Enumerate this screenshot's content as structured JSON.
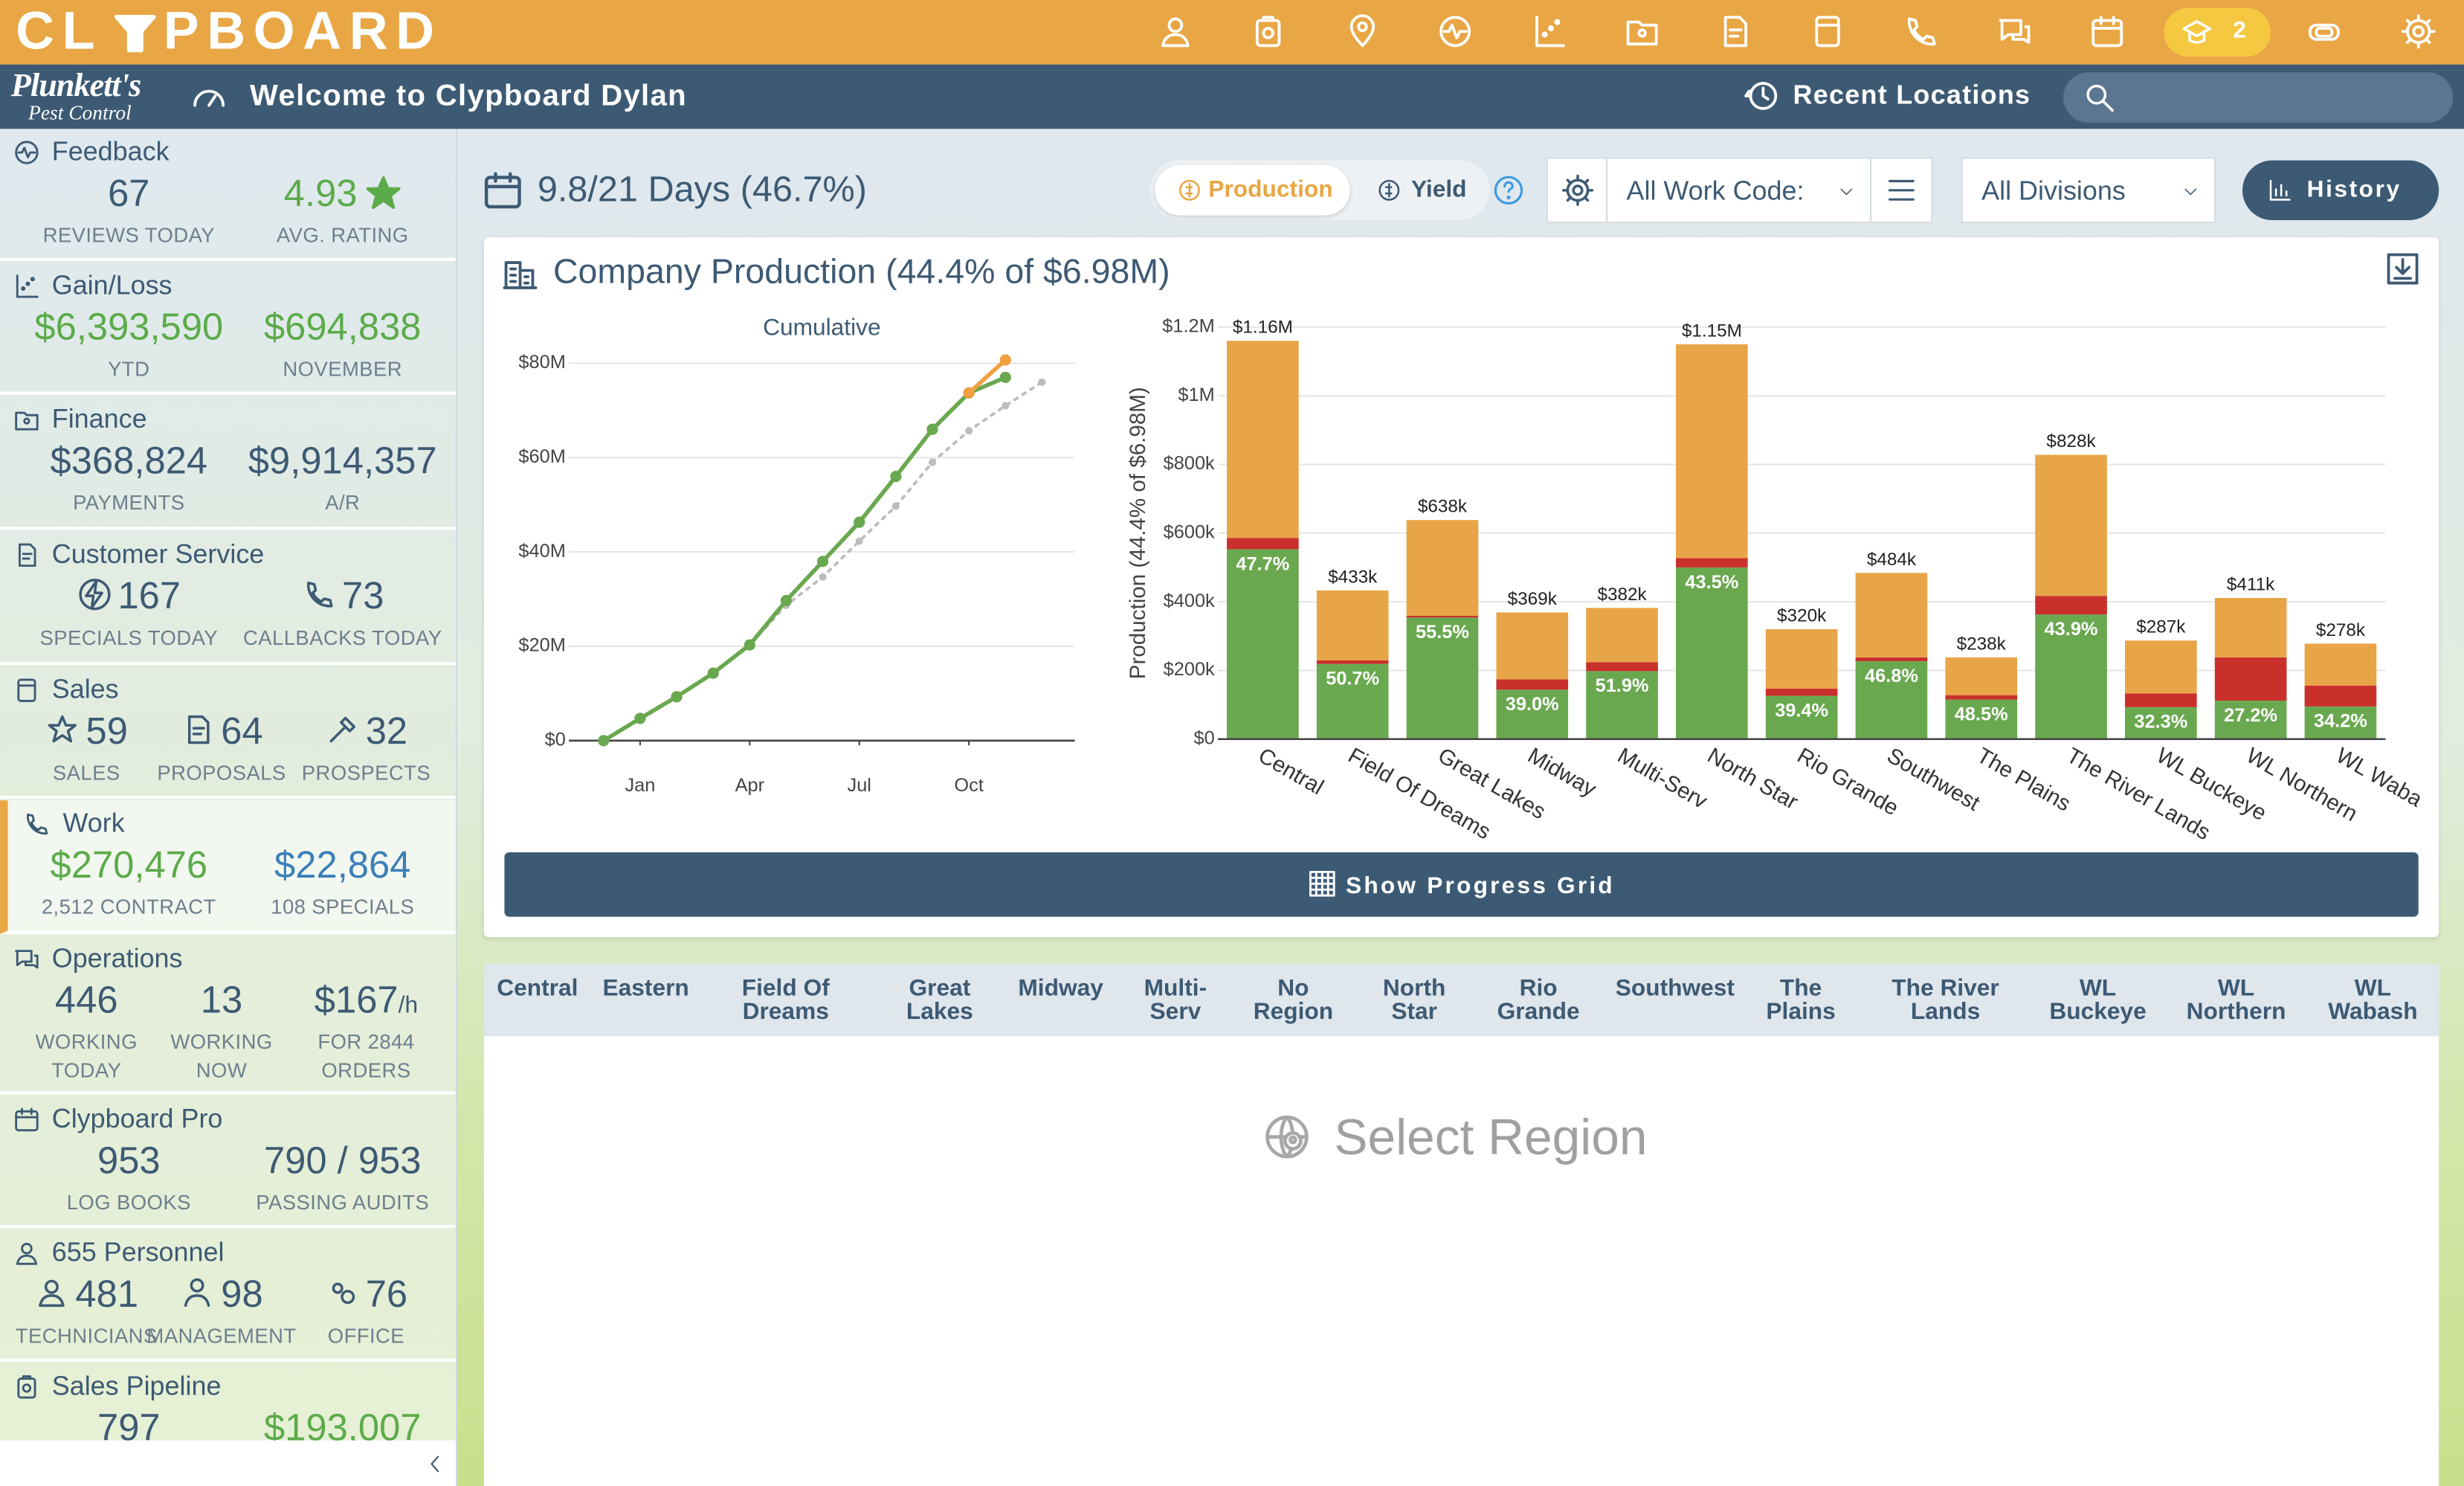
{
  "header": {
    "logo": [
      "CL",
      "PBOARD"
    ],
    "badge": "2"
  },
  "subheader": {
    "brand": "Plunkett's",
    "brand_sub": "Pest Control",
    "welcome": "Welcome to Clypboard Dylan",
    "recent": "Recent Locations"
  },
  "sidebar": {
    "cards": [
      {
        "title": "Feedback",
        "stats": [
          {
            "value": "67",
            "label": "REVIEWS TODAY",
            "tone": "dark"
          },
          {
            "value": "4.93",
            "label": "AVG. RATING",
            "tone": "green"
          }
        ]
      },
      {
        "title": "Gain/Loss",
        "stats": [
          {
            "value": "$6,393,590",
            "label": "YTD",
            "tone": "green"
          },
          {
            "value": "$694,838",
            "label": "NOVEMBER",
            "tone": "green"
          }
        ]
      },
      {
        "title": "Finance",
        "stats": [
          {
            "value": "$368,824",
            "label": "PAYMENTS",
            "tone": "dark"
          },
          {
            "value": "$9,914,357",
            "label": "A/R",
            "tone": "dark"
          }
        ]
      },
      {
        "title": "Customer Service",
        "stats": [
          {
            "value": "167",
            "label": "SPECIALS TODAY",
            "tone": "dark"
          },
          {
            "value": "73",
            "label": "CALLBACKS TODAY",
            "tone": "dark"
          }
        ]
      },
      {
        "title": "Sales",
        "stats": [
          {
            "value": "59",
            "label": "SALES",
            "tone": "dark"
          },
          {
            "value": "64",
            "label": "PROPOSALS",
            "tone": "dark"
          },
          {
            "value": "32",
            "label": "PROSPECTS",
            "tone": "dark"
          }
        ]
      },
      {
        "title": "Work",
        "stats": [
          {
            "value": "$270,476",
            "label": "2,512 CONTRACT",
            "tone": "green"
          },
          {
            "value": "$22,864",
            "label": "108 SPECIALS",
            "tone": "blue"
          }
        ]
      },
      {
        "title": "Operations",
        "stats": [
          {
            "value": "446",
            "label": "WORKING TODAY",
            "tone": "dark"
          },
          {
            "value": "13",
            "label": "WORKING NOW",
            "tone": "dark"
          },
          {
            "value": "$167",
            "unit": "/h",
            "label": "FOR 2844 ORDERS",
            "tone": "dark"
          }
        ]
      },
      {
        "title": "Clypboard Pro",
        "stats": [
          {
            "value": "953",
            "label": "LOG BOOKS",
            "tone": "dark"
          },
          {
            "value": "790 / 953",
            "label": "PASSING AUDITS",
            "tone": "dark"
          }
        ]
      },
      {
        "title": "655 Personnel",
        "stats": [
          {
            "value": "481",
            "label": "TECHNICIANS",
            "tone": "dark"
          },
          {
            "value": "98",
            "label": "MANAGEMENT",
            "tone": "dark"
          },
          {
            "value": "76",
            "label": "OFFICE",
            "tone": "dark"
          }
        ]
      },
      {
        "title": "Sales Pipeline",
        "stats": [
          {
            "value": "797",
            "tone": "dark"
          },
          {
            "value": "$193,007",
            "tone": "green"
          }
        ]
      }
    ]
  },
  "toolbar": {
    "days": "9.8/21 Days (46.7%)",
    "tabs": [
      "Production",
      "Yield"
    ],
    "work_code": "All Work Code:",
    "divisions": "All Divisions",
    "history": "History"
  },
  "panel": {
    "title": "Company Production (44.4% of $6.98M)",
    "button": "Show Progress Grid"
  },
  "chart_data": [
    {
      "type": "line",
      "title": "Cumulative",
      "x": [
        0,
        1,
        2,
        3,
        4,
        5,
        6,
        7,
        8,
        9,
        10,
        11,
        12
      ],
      "xlim": [
        -0.95,
        12.9
      ],
      "xticks": [
        {
          "value": 1,
          "label": "Jan"
        },
        {
          "value": 4,
          "label": "Apr"
        },
        {
          "value": 7,
          "label": "Jul"
        },
        {
          "value": 10,
          "label": "Oct"
        }
      ],
      "ylim": [
        0,
        84000000
      ],
      "yticks": [
        {
          "value": 0,
          "label": "$0"
        },
        {
          "value": 20000000,
          "label": "$20M"
        },
        {
          "value": 40000000,
          "label": "$40M"
        },
        {
          "value": 60000000,
          "label": "$60M"
        },
        {
          "value": 80000000,
          "label": "$80M"
        }
      ],
      "grid": true,
      "series": [
        {
          "color": "#bdbdbd",
          "style": "dotted",
          "values": [
            0,
            4700000,
            9300000,
            14300000,
            20300000,
            28700000,
            34700000,
            42300000,
            49700000,
            59000000,
            65700000,
            71000000,
            76000000
          ]
        },
        {
          "color": "#6aa84f",
          "style": "solid",
          "values": [
            0,
            4700000,
            9300000,
            14300000,
            20300000,
            29700000,
            38000000,
            46300000,
            56000000,
            66000000,
            73700000,
            77000000,
            null
          ]
        },
        {
          "color": "#f0a040",
          "style": "solid",
          "values": [
            null,
            null,
            null,
            null,
            null,
            null,
            null,
            null,
            null,
            null,
            73700000,
            80700000,
            null
          ]
        }
      ]
    },
    {
      "type": "bar",
      "stacked": true,
      "ylabel": "Production (44.4% of $6.98M)",
      "categories": [
        "Central",
        "Field Of Dreams",
        "Great Lakes",
        "Midway",
        "Multi-Serv",
        "North Star",
        "Rio Grande",
        "Southwest",
        "The Plains",
        "The River Lands",
        "WL Buckeye",
        "WL Northern",
        "WL Waba"
      ],
      "ylim": [
        0,
        1200000
      ],
      "yticks": [
        {
          "value": 0,
          "label": "$0"
        },
        {
          "value": 200000,
          "label": "$200k"
        },
        {
          "value": 400000,
          "label": "$400k"
        },
        {
          "value": 600000,
          "label": "$600k"
        },
        {
          "value": 800000,
          "label": "$800k"
        },
        {
          "value": 1000000,
          "label": "$1M"
        },
        {
          "value": 1200000,
          "label": "$1.2M"
        }
      ],
      "grid": true,
      "series": [
        {
          "color": "#6aa84f",
          "values": [
            553000,
            219000,
            354000,
            144000,
            198000,
            500000,
            126000,
            227000,
            115000,
            363000,
            93000,
            112000,
            95000
          ]
        },
        {
          "color": "#c9302c",
          "values": [
            33000,
            10000,
            5000,
            30000,
            26000,
            27000,
            21000,
            11000,
            13000,
            54000,
            40000,
            126000,
            61000
          ]
        },
        {
          "color": "#e8a548",
          "values": [
            574000,
            204000,
            279000,
            195000,
            158000,
            623000,
            173000,
            246000,
            110000,
            411000,
            154000,
            173000,
            122000
          ]
        }
      ],
      "total_labels": [
        "$1.16M",
        "$433k",
        "$638k",
        "$369k",
        "$382k",
        "$1.15M",
        "$320k",
        "$484k",
        "$238k",
        "$828k",
        "$287k",
        "$411k",
        "$278k"
      ],
      "share_labels": [
        "47.7%",
        "50.7%",
        "55.5%",
        "39.0%",
        "51.9%",
        "43.5%",
        "39.4%",
        "46.8%",
        "48.5%",
        "43.9%",
        "32.3%",
        "27.2%",
        "34.2%"
      ]
    }
  ],
  "progress_grid": {
    "columns": [
      "Central",
      "Eastern",
      "Field Of Dreams",
      "Great Lakes",
      "Midway",
      "Multi-Serv",
      "No Region",
      "North Star",
      "Rio Grande",
      "Southwest",
      "The Plains",
      "The River Lands",
      "WL Buckeye",
      "WL Northern",
      "WL Wabash"
    ],
    "placeholder": "Select Region"
  }
}
